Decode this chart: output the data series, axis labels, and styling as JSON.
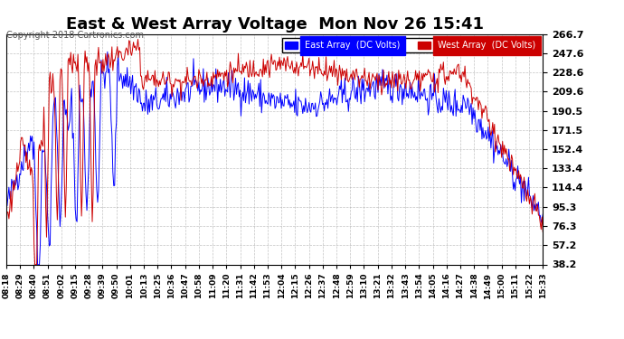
{
  "title": "East & West Array Voltage  Mon Nov 26 15:41",
  "copyright": "Copyright 2018 Cartronics.com",
  "legend_east": "East Array  (DC Volts)",
  "legend_west": "West Array  (DC Volts)",
  "east_color": "#0000ff",
  "west_color": "#cc0000",
  "bg_color": "#ffffff",
  "plot_bg_color": "#ffffff",
  "grid_color": "#aaaaaa",
  "ylabel_right_values": [
    266.7,
    247.6,
    228.6,
    209.6,
    190.5,
    171.5,
    152.4,
    133.4,
    114.4,
    95.3,
    76.3,
    57.2,
    38.2
  ],
  "ylim_min": 38.2,
  "ylim_max": 266.7,
  "x_labels": [
    "08:18",
    "08:29",
    "08:40",
    "08:51",
    "09:02",
    "09:15",
    "09:28",
    "09:39",
    "09:50",
    "10:01",
    "10:13",
    "10:25",
    "10:36",
    "10:47",
    "10:58",
    "11:09",
    "11:20",
    "11:31",
    "11:42",
    "11:53",
    "12:04",
    "12:15",
    "12:26",
    "12:37",
    "12:48",
    "12:59",
    "13:10",
    "13:21",
    "13:32",
    "13:43",
    "13:54",
    "14:05",
    "14:16",
    "14:27",
    "14:38",
    "14:49",
    "15:00",
    "15:11",
    "15:22",
    "15:33"
  ],
  "seed_east": 42,
  "seed_west": 123
}
